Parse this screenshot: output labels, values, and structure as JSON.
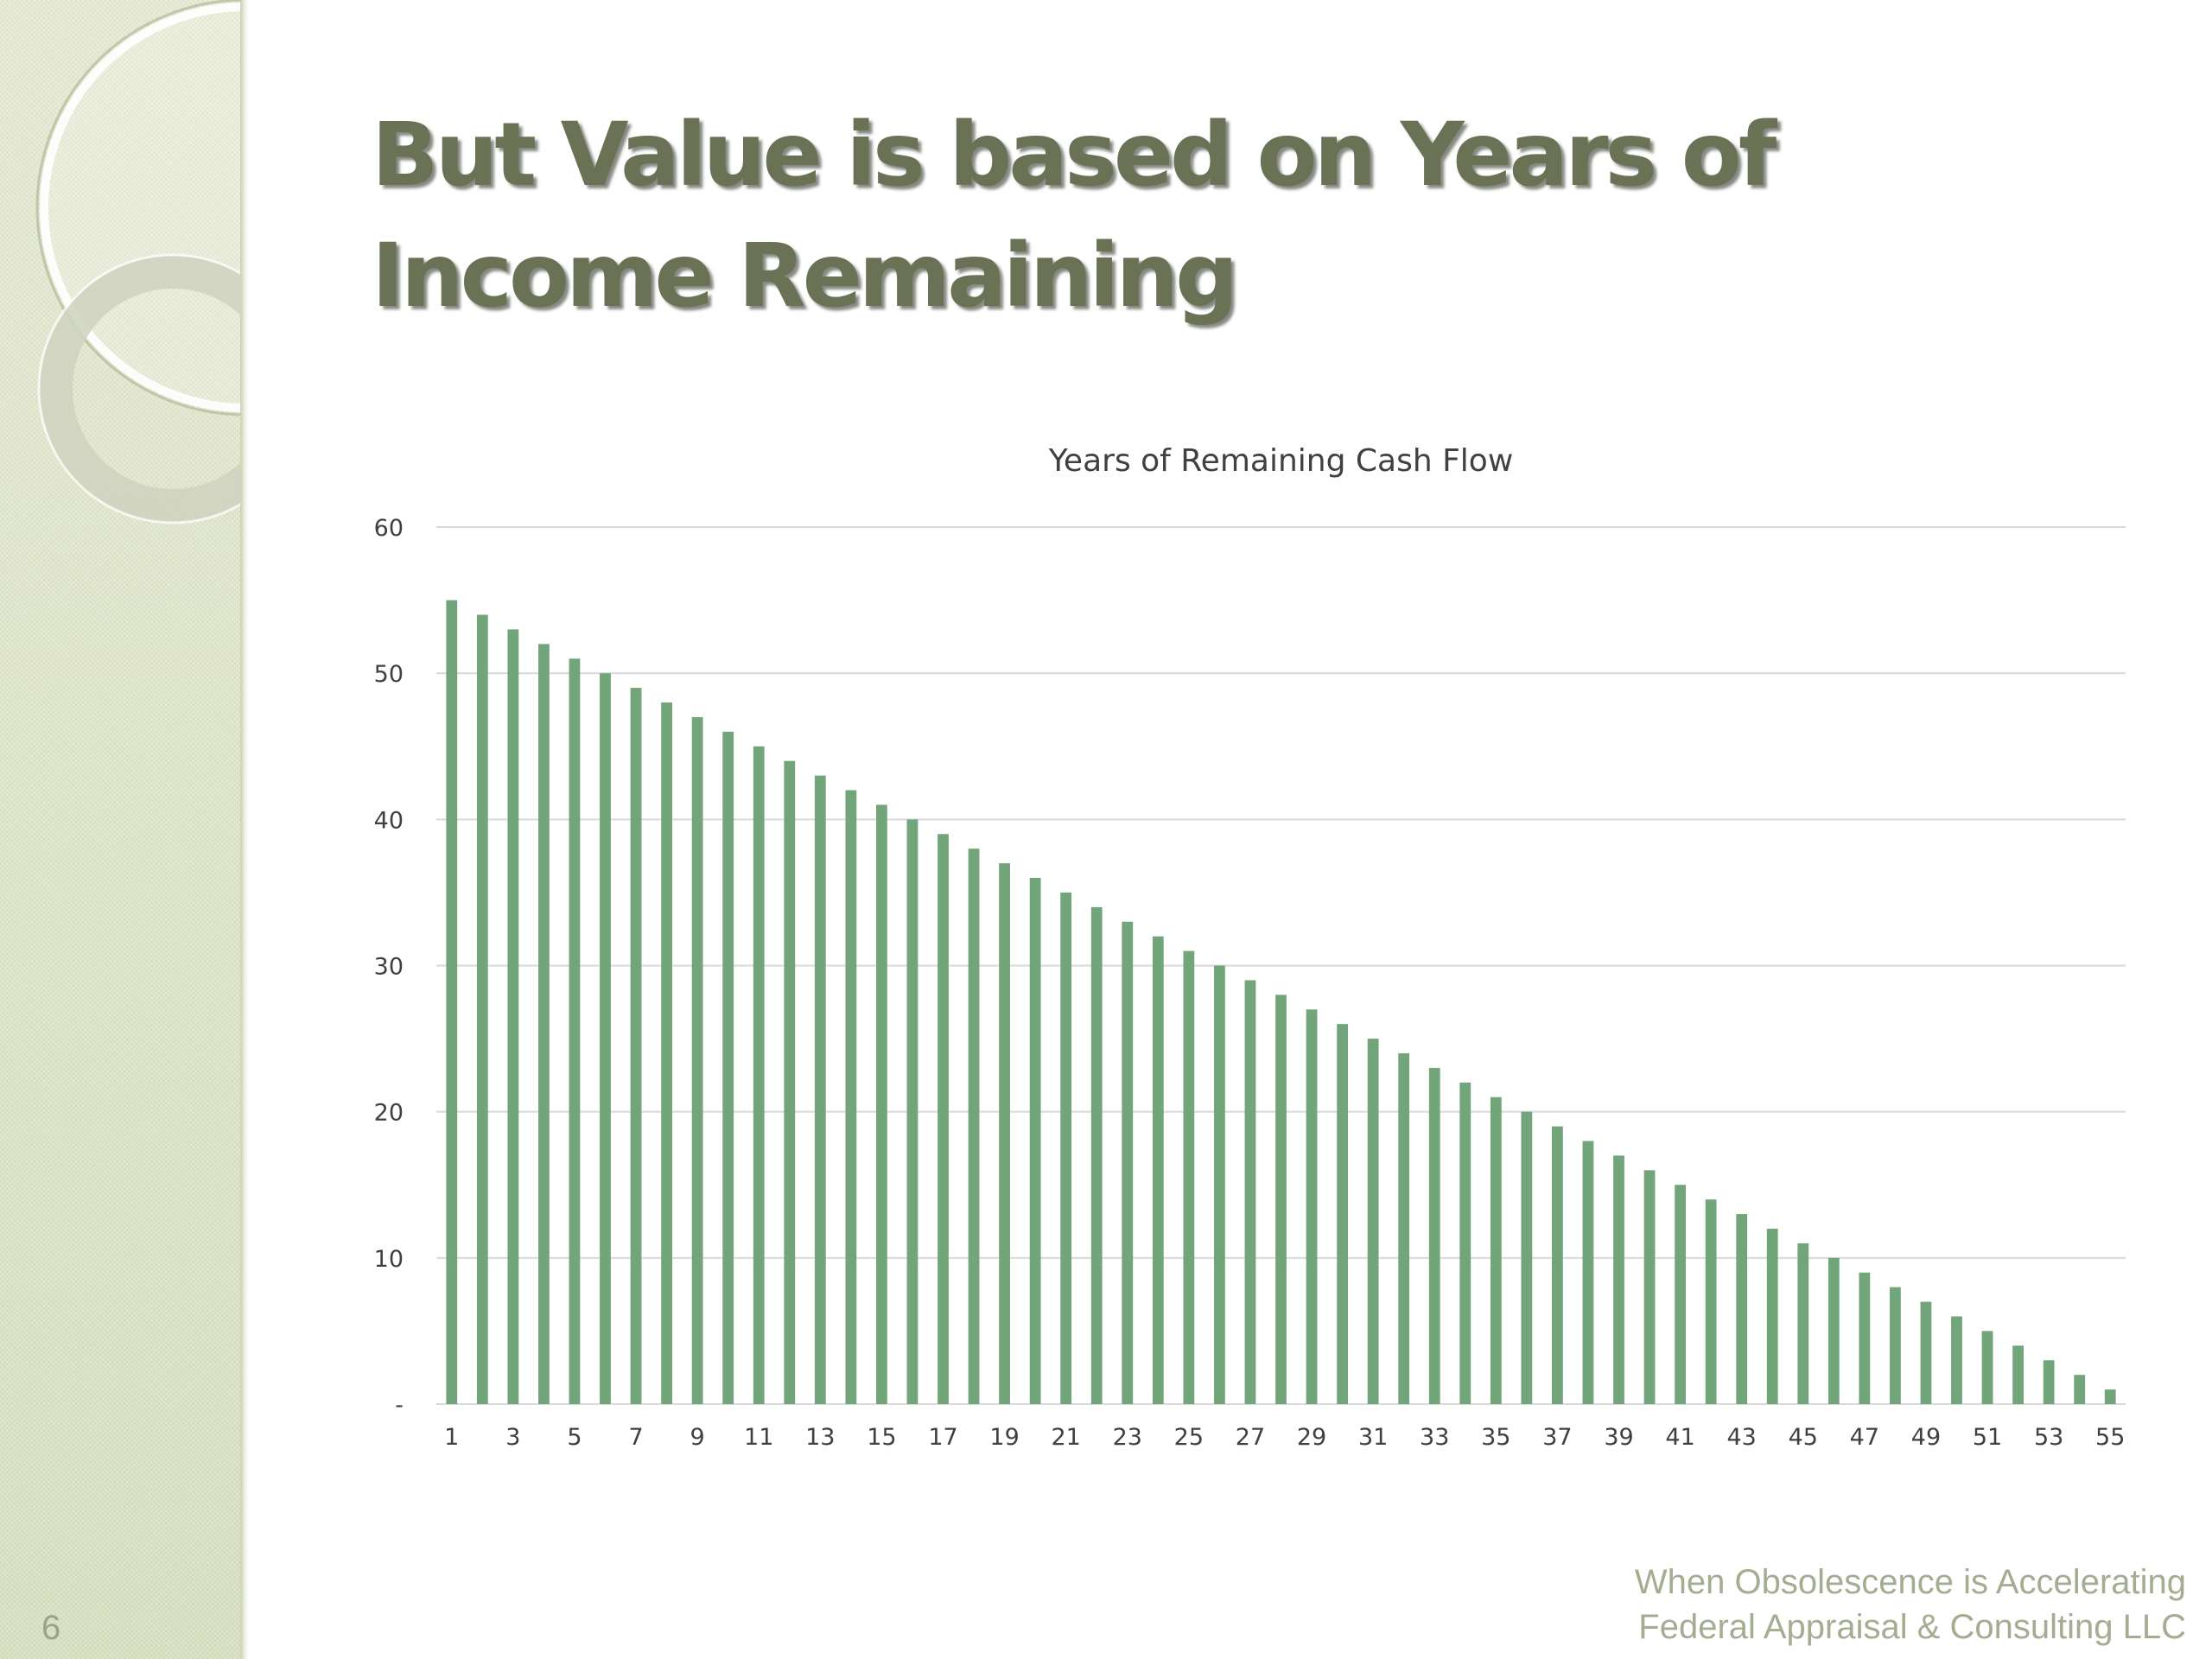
{
  "slide": {
    "number": "6",
    "title": "But Value is based on Years of Income Remaining"
  },
  "footer": {
    "line1": "When Obsolescence is Accelerating",
    "line2": "Federal Appraisal & Consulting LLC"
  },
  "colors": {
    "bar": "#72a57a",
    "grid": "#d9d9d9",
    "title_text": "#6a7256",
    "axis_text": "#404040"
  },
  "chart_data": {
    "type": "bar",
    "title": "Years of Remaining Cash Flow",
    "xlabel": "",
    "ylabel": "",
    "categories": [
      1,
      2,
      3,
      4,
      5,
      6,
      7,
      8,
      9,
      10,
      11,
      12,
      13,
      14,
      15,
      16,
      17,
      18,
      19,
      20,
      21,
      22,
      23,
      24,
      25,
      26,
      27,
      28,
      29,
      30,
      31,
      32,
      33,
      34,
      35,
      36,
      37,
      38,
      39,
      40,
      41,
      42,
      43,
      44,
      45,
      46,
      47,
      48,
      49,
      50,
      51,
      52,
      53,
      54,
      55
    ],
    "x_tick_labels": [
      "1",
      "3",
      "5",
      "7",
      "9",
      "11",
      "13",
      "15",
      "17",
      "19",
      "21",
      "23",
      "25",
      "27",
      "29",
      "31",
      "33",
      "35",
      "37",
      "39",
      "41",
      "43",
      "45",
      "47",
      "49",
      "51",
      "53",
      "55"
    ],
    "values": [
      55,
      54,
      53,
      52,
      51,
      50,
      49,
      48,
      47,
      46,
      45,
      44,
      43,
      42,
      41,
      40,
      39,
      38,
      37,
      36,
      35,
      34,
      33,
      32,
      31,
      30,
      29,
      28,
      27,
      26,
      25,
      24,
      23,
      22,
      21,
      20,
      19,
      18,
      17,
      16,
      15,
      14,
      13,
      12,
      11,
      10,
      9,
      8,
      7,
      6,
      5,
      4,
      3,
      2,
      1
    ],
    "ylim": [
      0,
      60
    ],
    "y_ticks": [
      0,
      10,
      20,
      30,
      40,
      50,
      60
    ],
    "y_tick_labels": [
      "-",
      "10",
      "20",
      "30",
      "40",
      "50",
      "60"
    ],
    "grid": true,
    "legend": "none"
  }
}
